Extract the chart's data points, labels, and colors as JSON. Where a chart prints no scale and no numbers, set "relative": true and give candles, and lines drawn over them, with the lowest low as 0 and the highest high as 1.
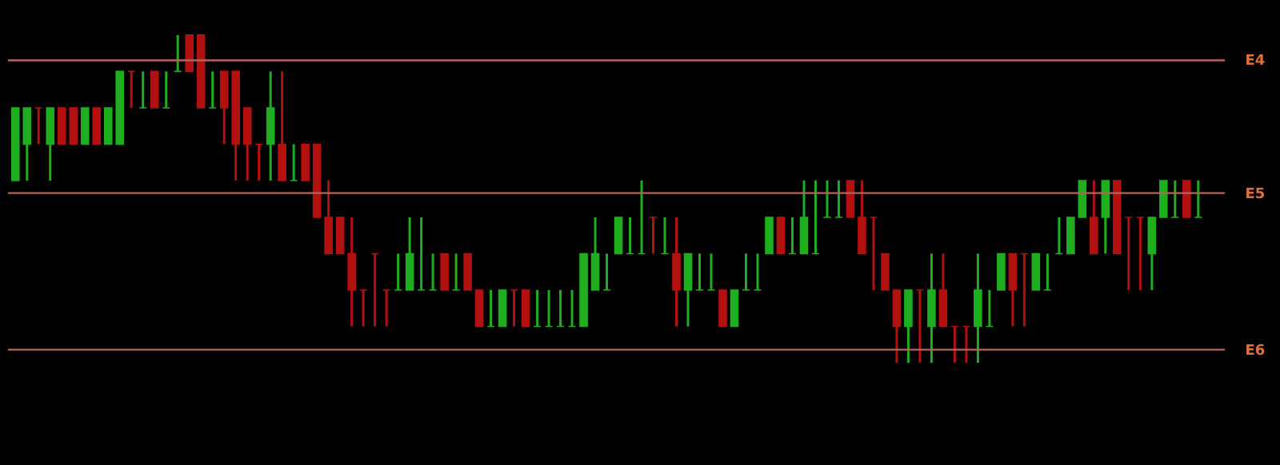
{
  "chart_data": {
    "type": "candlestick",
    "relative": true,
    "categories": [
      null,
      null,
      null,
      null,
      null,
      null,
      null,
      null,
      null,
      null,
      null,
      null,
      null,
      null,
      null,
      null,
      null,
      null,
      null,
      null,
      null,
      null,
      null,
      null,
      null,
      null,
      null,
      null,
      null,
      null,
      null,
      null,
      null,
      null,
      null,
      null,
      null,
      null,
      null,
      null,
      null,
      null,
      null,
      null,
      null,
      null,
      null,
      null,
      null,
      null,
      null,
      null,
      null,
      null,
      null,
      null,
      null,
      null,
      null,
      null,
      null,
      null,
      null,
      null,
      null,
      null,
      null,
      null,
      null,
      null,
      null,
      null,
      null,
      null,
      null,
      null,
      null,
      null,
      null,
      null,
      null,
      null,
      null,
      null,
      null,
      null,
      null,
      null,
      null,
      null,
      null,
      null,
      null,
      null,
      null,
      null,
      null,
      null,
      null,
      null,
      null,
      null,
      null
    ],
    "ohlc": [
      [
        0.556,
        0.778,
        0.556,
        0.778
      ],
      [
        0.667,
        0.778,
        0.556,
        0.778
      ],
      [
        0.778,
        0.778,
        0.667,
        0.778
      ],
      [
        0.667,
        0.778,
        0.556,
        0.778
      ],
      [
        0.778,
        0.778,
        0.667,
        0.667
      ],
      [
        0.778,
        0.778,
        0.667,
        0.667
      ],
      [
        0.667,
        0.778,
        0.667,
        0.778
      ],
      [
        0.778,
        0.778,
        0.667,
        0.667
      ],
      [
        0.667,
        0.778,
        0.667,
        0.778
      ],
      [
        0.667,
        0.889,
        0.667,
        0.889
      ],
      [
        0.889,
        0.889,
        0.778,
        0.889
      ],
      [
        0.778,
        0.889,
        0.778,
        0.778
      ],
      [
        0.889,
        0.889,
        0.778,
        0.778
      ],
      [
        0.778,
        0.889,
        0.778,
        0.778
      ],
      [
        0.889,
        1,
        0.889,
        0.889
      ],
      [
        1,
        1,
        0.889,
        0.889
      ],
      [
        1,
        1,
        0.778,
        0.778
      ],
      [
        0.778,
        0.889,
        0.778,
        0.778
      ],
      [
        0.889,
        0.889,
        0.667,
        0.778
      ],
      [
        0.889,
        0.889,
        0.556,
        0.667
      ],
      [
        0.778,
        0.778,
        0.556,
        0.667
      ],
      [
        0.667,
        0.667,
        0.556,
        0.667
      ],
      [
        0.667,
        0.889,
        0.556,
        0.778
      ],
      [
        0.667,
        0.889,
        0.556,
        0.556
      ],
      [
        0.556,
        0.667,
        0.556,
        0.556
      ],
      [
        0.667,
        0.667,
        0.556,
        0.556
      ],
      [
        0.667,
        0.667,
        0.444,
        0.444
      ],
      [
        0.444,
        0.556,
        0.333,
        0.333
      ],
      [
        0.444,
        0.444,
        0.333,
        0.333
      ],
      [
        0.333,
        0.444,
        0.111,
        0.222
      ],
      [
        0.222,
        0.222,
        0.111,
        0.222
      ],
      [
        0.333,
        0.333,
        0.111,
        0.333
      ],
      [
        0.222,
        0.222,
        0.111,
        0.222
      ],
      [
        0.222,
        0.333,
        0.222,
        0.222
      ],
      [
        0.222,
        0.444,
        0.222,
        0.333
      ],
      [
        0.222,
        0.444,
        0.222,
        0.222
      ],
      [
        0.222,
        0.333,
        0.222,
        0.222
      ],
      [
        0.333,
        0.333,
        0.222,
        0.222
      ],
      [
        0.222,
        0.333,
        0.222,
        0.222
      ],
      [
        0.333,
        0.333,
        0.222,
        0.222
      ],
      [
        0.222,
        0.222,
        0.111,
        0.111
      ],
      [
        0.111,
        0.222,
        0.111,
        0.111
      ],
      [
        0.111,
        0.222,
        0.111,
        0.222
      ],
      [
        0.222,
        0.222,
        0.111,
        0.222
      ],
      [
        0.222,
        0.222,
        0.111,
        0.111
      ],
      [
        0.111,
        0.222,
        0.111,
        0.111
      ],
      [
        0.111,
        0.222,
        0.111,
        0.111
      ],
      [
        0.111,
        0.222,
        0.111,
        0.111
      ],
      [
        0.111,
        0.222,
        0.111,
        0.111
      ],
      [
        0.111,
        0.333,
        0.111,
        0.333
      ],
      [
        0.222,
        0.444,
        0.222,
        0.333
      ],
      [
        0.222,
        0.333,
        0.222,
        0.222
      ],
      [
        0.333,
        0.444,
        0.333,
        0.444
      ],
      [
        0.333,
        0.444,
        0.333,
        0.333
      ],
      [
        0.333,
        0.556,
        0.333,
        0.333
      ],
      [
        0.444,
        0.444,
        0.333,
        0.444
      ],
      [
        0.333,
        0.444,
        0.333,
        0.333
      ],
      [
        0.333,
        0.444,
        0.111,
        0.222
      ],
      [
        0.222,
        0.333,
        0.111,
        0.333
      ],
      [
        0.222,
        0.333,
        0.222,
        0.222
      ],
      [
        0.222,
        0.333,
        0.222,
        0.222
      ],
      [
        0.222,
        0.222,
        0.111,
        0.111
      ],
      [
        0.111,
        0.222,
        0.111,
        0.222
      ],
      [
        0.222,
        0.333,
        0.222,
        0.222
      ],
      [
        0.222,
        0.333,
        0.222,
        0.222
      ],
      [
        0.333,
        0.444,
        0.333,
        0.444
      ],
      [
        0.444,
        0.444,
        0.333,
        0.333
      ],
      [
        0.333,
        0.444,
        0.333,
        0.333
      ],
      [
        0.333,
        0.556,
        0.333,
        0.444
      ],
      [
        0.333,
        0.556,
        0.333,
        0.333
      ],
      [
        0.444,
        0.556,
        0.444,
        0.444
      ],
      [
        0.444,
        0.556,
        0.444,
        0.444
      ],
      [
        0.556,
        0.556,
        0.444,
        0.444
      ],
      [
        0.444,
        0.556,
        0.333,
        0.333
      ],
      [
        0.444,
        0.444,
        0.222,
        0.444
      ],
      [
        0.333,
        0.333,
        0.222,
        0.222
      ],
      [
        0.222,
        0.222,
        0,
        0.111
      ],
      [
        0.111,
        0.222,
        0,
        0.222
      ],
      [
        0.222,
        0.222,
        0,
        0.222
      ],
      [
        0.111,
        0.333,
        0,
        0.222
      ],
      [
        0.222,
        0.333,
        0.111,
        0.111
      ],
      [
        0.111,
        0.111,
        0,
        0.111
      ],
      [
        0.111,
        0.111,
        0,
        0.111
      ],
      [
        0.111,
        0.333,
        0,
        0.222
      ],
      [
        0.111,
        0.222,
        0.111,
        0.111
      ],
      [
        0.222,
        0.333,
        0.222,
        0.333
      ],
      [
        0.333,
        0.333,
        0.111,
        0.222
      ],
      [
        0.333,
        0.333,
        0.111,
        0.333
      ],
      [
        0.222,
        0.333,
        0.222,
        0.333
      ],
      [
        0.222,
        0.333,
        0.222,
        0.222
      ],
      [
        0.333,
        0.444,
        0.333,
        0.333
      ],
      [
        0.333,
        0.444,
        0.333,
        0.444
      ],
      [
        0.444,
        0.556,
        0.444,
        0.556
      ],
      [
        0.444,
        0.556,
        0.333,
        0.333
      ],
      [
        0.444,
        0.556,
        0.333,
        0.556
      ],
      [
        0.556,
        0.556,
        0.333,
        0.333
      ],
      [
        0.444,
        0.444,
        0.222,
        0.444
      ],
      [
        0.444,
        0.444,
        0.222,
        0.444
      ],
      [
        0.333,
        0.444,
        0.222,
        0.444
      ],
      [
        0.444,
        0.556,
        0.444,
        0.556
      ],
      [
        0.444,
        0.556,
        0.444,
        0.444
      ],
      [
        0.556,
        0.556,
        0.444,
        0.444
      ],
      [
        0.444,
        0.556,
        0.444,
        0.444
      ]
    ],
    "colors": [
      "#1fae1f",
      "#1fae1f",
      "#b31010",
      "#1fae1f",
      "#b31010",
      "#b31010",
      "#1fae1f",
      "#b31010",
      "#1fae1f",
      "#1fae1f",
      "#b31010",
      "#1fae1f",
      "#b31010",
      "#1fae1f",
      "#1fae1f",
      "#b31010",
      "#b31010",
      "#1fae1f",
      "#b31010",
      "#b31010",
      "#b31010",
      "#b31010",
      "#1fae1f",
      "#b31010",
      "#1fae1f",
      "#b31010",
      "#b31010",
      "#b31010",
      "#b31010",
      "#b31010",
      "#b31010",
      "#b31010",
      "#b31010",
      "#1fae1f",
      "#1fae1f",
      "#1fae1f",
      "#1fae1f",
      "#b31010",
      "#1fae1f",
      "#b31010",
      "#b31010",
      "#1fae1f",
      "#1fae1f",
      "#b31010",
      "#b31010",
      "#1fae1f",
      "#1fae1f",
      "#1fae1f",
      "#1fae1f",
      "#1fae1f",
      "#1fae1f",
      "#1fae1f",
      "#1fae1f",
      "#1fae1f",
      "#1fae1f",
      "#b31010",
      "#1fae1f",
      "#b31010",
      "#1fae1f",
      "#1fae1f",
      "#1fae1f",
      "#b31010",
      "#1fae1f",
      "#1fae1f",
      "#1fae1f",
      "#1fae1f",
      "#b31010",
      "#1fae1f",
      "#1fae1f",
      "#1fae1f",
      "#1fae1f",
      "#1fae1f",
      "#b31010",
      "#b31010",
      "#b31010",
      "#b31010",
      "#b31010",
      "#1fae1f",
      "#b31010",
      "#1fae1f",
      "#b31010",
      "#b31010",
      "#b31010",
      "#1fae1f",
      "#1fae1f",
      "#1fae1f",
      "#b31010",
      "#b31010",
      "#1fae1f",
      "#1fae1f",
      "#1fae1f",
      "#1fae1f",
      "#1fae1f",
      "#b31010",
      "#1fae1f",
      "#b31010",
      "#b31010",
      "#b31010",
      "#1fae1f",
      "#1fae1f",
      "#1fae1f",
      "#b31010",
      "#1fae1f"
    ],
    "ref_lines": [
      {
        "axis": "y",
        "value": 0.923,
        "label": "E4",
        "color": "#b4645a"
      },
      {
        "axis": "y",
        "value": 0.518,
        "label": "E5",
        "color": "#b4645a"
      },
      {
        "axis": "y",
        "value": 0.04,
        "label": "E6",
        "color": "#b4645a"
      }
    ]
  }
}
